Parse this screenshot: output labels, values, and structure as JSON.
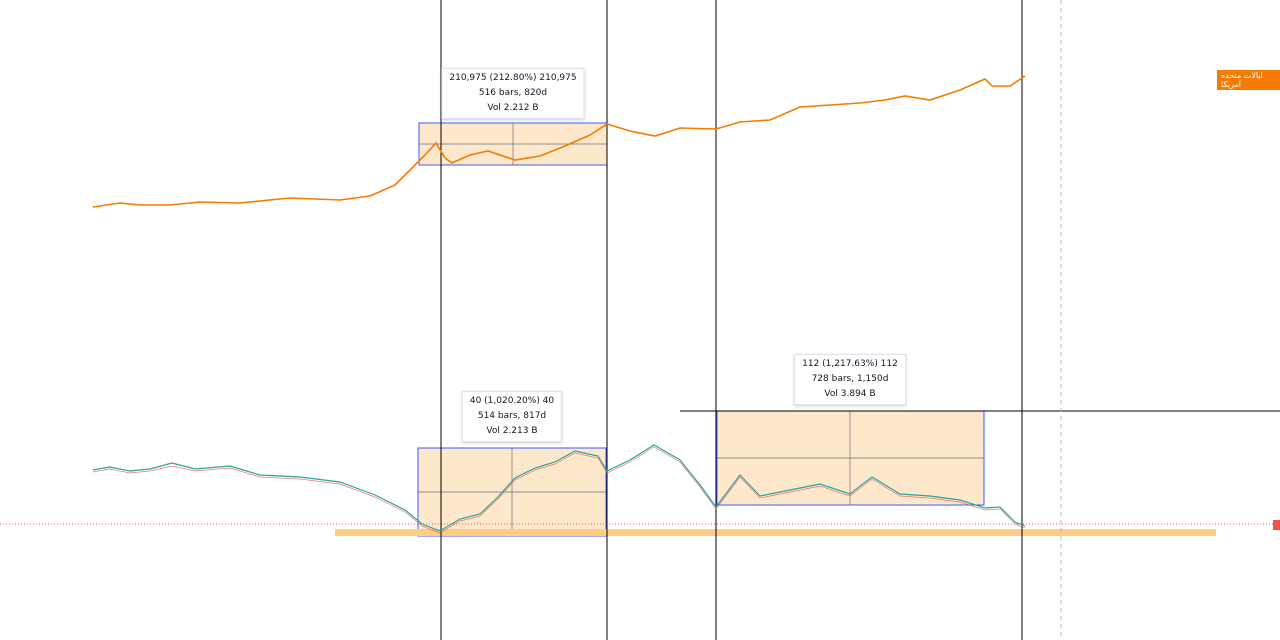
{
  "measurements": [
    {
      "change": "210,975 (212.80%) 210,975",
      "bars": "516 bars, 820d",
      "volume": "Vol 2.212 B"
    },
    {
      "change": "40 (1,020.20%) 40",
      "bars": "514 bars, 817d",
      "volume": "Vol 2.213 B"
    },
    {
      "change": "112 (1,217.63%) 112",
      "bars": "728 bars, 1,150d",
      "volume": "Vol 3.894 B"
    }
  ],
  "series_label": "ایالات متحده آمریکا"
}
